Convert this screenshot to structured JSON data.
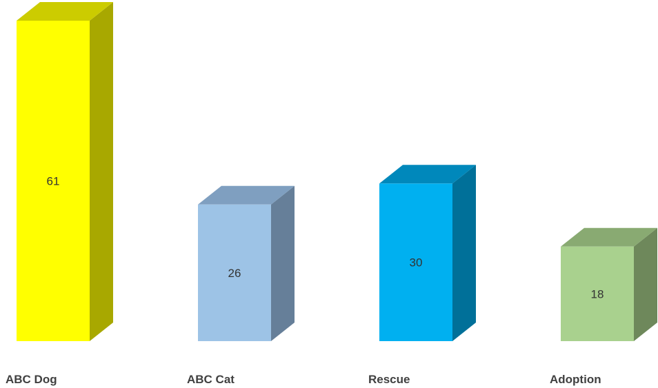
{
  "chart_data": {
    "type": "bar",
    "style": "3d-column",
    "categories": [
      "ABC Dog",
      "ABC Cat",
      "Rescue",
      "Adoption"
    ],
    "values": [
      61,
      26,
      30,
      18
    ],
    "colors": [
      {
        "front": "#ffff00",
        "top": "#cccc00",
        "side": "#a8a800"
      },
      {
        "front": "#9dc3e6",
        "top": "#7f9fc0",
        "side": "#667f99"
      },
      {
        "front": "#00b0f0",
        "top": "#0088bb",
        "side": "#007099"
      },
      {
        "front": "#a9d18e",
        "top": "#89aa72",
        "side": "#6e885b"
      }
    ],
    "title": "",
    "xlabel": "",
    "ylabel": "",
    "ylim": [
      0,
      61
    ],
    "grid": false,
    "data_labels": true
  }
}
